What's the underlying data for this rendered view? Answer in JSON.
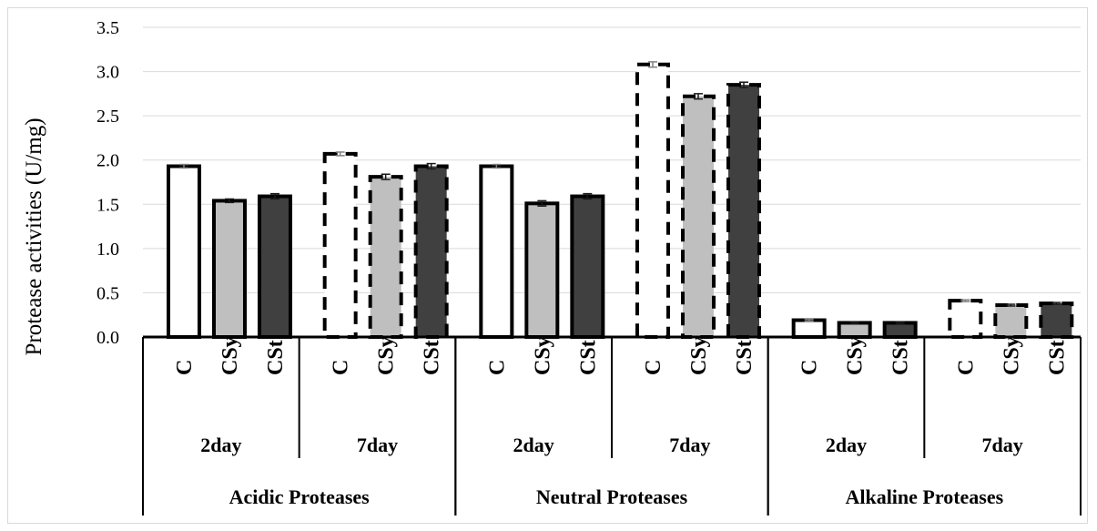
{
  "chart_data": {
    "type": "bar",
    "ylabel": "Protease activities (U/mg)",
    "ylim": [
      0,
      3.5
    ],
    "yticks": [
      "0.0",
      "0.5",
      "1.0",
      "1.5",
      "2.0",
      "2.5",
      "3.0",
      "3.5"
    ],
    "grid": true,
    "groups": [
      {
        "name": "Acidic Proteases",
        "days": [
          {
            "label": "2day",
            "bars": [
              {
                "label": "C",
                "value": 1.93,
                "err": 0.02
              },
              {
                "label": "CSy",
                "value": 1.54,
                "err": 0.02
              },
              {
                "label": "CSt",
                "value": 1.59,
                "err": 0.03
              }
            ]
          },
          {
            "label": "7day",
            "bars": [
              {
                "label": "C",
                "value": 2.07,
                "err": 0.02
              },
              {
                "label": "CSy",
                "value": 1.81,
                "err": 0.03
              },
              {
                "label": "CSt",
                "value": 1.93,
                "err": 0.03
              }
            ]
          }
        ]
      },
      {
        "name": "Neutral Proteases",
        "days": [
          {
            "label": "2day",
            "bars": [
              {
                "label": "C",
                "value": 1.93,
                "err": 0.02
              },
              {
                "label": "CSy",
                "value": 1.51,
                "err": 0.03
              },
              {
                "label": "CSt",
                "value": 1.59,
                "err": 0.03
              }
            ]
          },
          {
            "label": "7day",
            "bars": [
              {
                "label": "C",
                "value": 3.08,
                "err": 0.03
              },
              {
                "label": "CSy",
                "value": 2.72,
                "err": 0.03
              },
              {
                "label": "CSt",
                "value": 2.85,
                "err": 0.03
              }
            ]
          }
        ]
      },
      {
        "name": "Alkaline Proteases",
        "days": [
          {
            "label": "2day",
            "bars": [
              {
                "label": "C",
                "value": 0.19,
                "err": 0.01
              },
              {
                "label": "CSy",
                "value": 0.16,
                "err": 0.01
              },
              {
                "label": "CSt",
                "value": 0.16,
                "err": 0.01
              }
            ]
          },
          {
            "label": "7day",
            "bars": [
              {
                "label": "C",
                "value": 0.41,
                "err": 0.01
              },
              {
                "label": "CSy",
                "value": 0.36,
                "err": 0.01
              },
              {
                "label": "CSt",
                "value": 0.38,
                "err": 0.01
              }
            ]
          }
        ]
      }
    ],
    "colors": {
      "C": "#ffffff",
      "CSy": "#bfbfbf",
      "CSt": "#404040",
      "grid": "#d9d9d9",
      "outline": "#000000"
    },
    "style": {
      "2day": "solid",
      "7day": "dashed"
    }
  }
}
